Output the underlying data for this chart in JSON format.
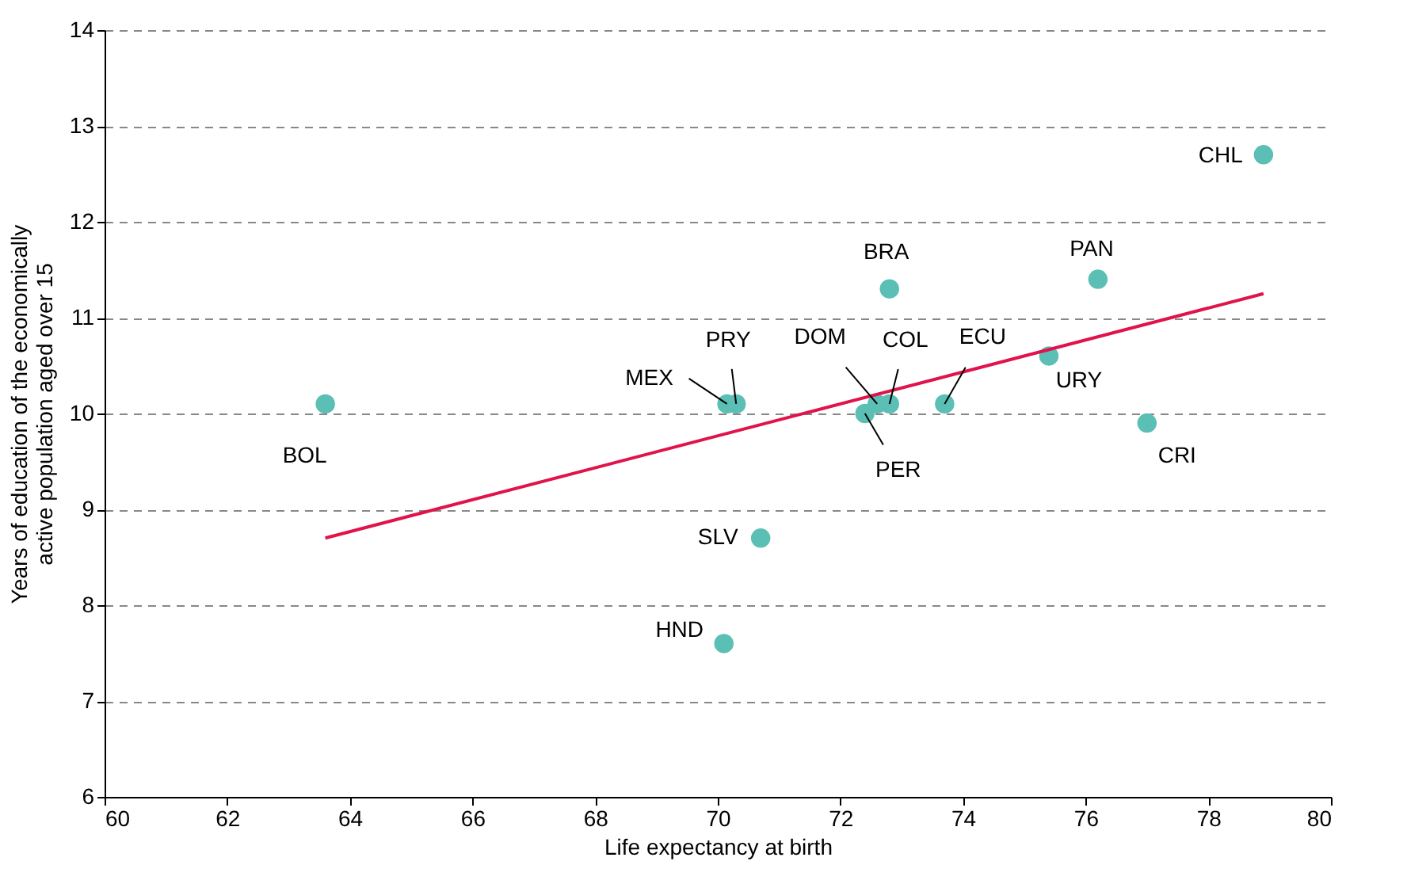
{
  "chart_data": {
    "type": "scatter",
    "xlabel": "Life expectancy at birth",
    "ylabel": "Years of education of the economically\nactive population aged over 15",
    "xlim": [
      60,
      80
    ],
    "xticks": [
      60,
      62,
      64,
      66,
      68,
      70,
      72,
      74,
      76,
      78,
      80
    ],
    "ylim": [
      6,
      14
    ],
    "yticks": [
      6,
      7,
      8,
      9,
      10,
      11,
      12,
      13,
      14
    ],
    "grid": "y",
    "series": [
      {
        "color": "#5bbfb5",
        "marker": "circle",
        "x": [
          63.6,
          70.15,
          70.3,
          72.6,
          72.8,
          72.4,
          72.8,
          73.7,
          75.4,
          77.0,
          76.2,
          78.9,
          70.7,
          70.1
        ],
        "values": [
          10.1,
          10.1,
          10.1,
          10.1,
          10.1,
          10.0,
          11.3,
          10.1,
          10.6,
          9.9,
          11.4,
          12.7,
          8.7,
          7.6
        ]
      },
      {
        "type": "line",
        "color": "#e0134a",
        "line_style": "solid",
        "marker": "none",
        "x": [
          63.6,
          78.9
        ],
        "values": [
          8.7,
          11.25
        ]
      }
    ],
    "annotations": [
      {
        "text": "BOL",
        "x": 63.6,
        "y": 10.1
      },
      {
        "text": "MEX",
        "x": 70.15,
        "y": 10.1
      },
      {
        "text": "PRY",
        "x": 70.3,
        "y": 10.1
      },
      {
        "text": "DOM",
        "x": 72.6,
        "y": 10.1
      },
      {
        "text": "COL",
        "x": 72.8,
        "y": 10.1
      },
      {
        "text": "PER",
        "x": 72.4,
        "y": 10.0
      },
      {
        "text": "BRA",
        "x": 72.8,
        "y": 11.3
      },
      {
        "text": "ECU",
        "x": 73.7,
        "y": 10.1
      },
      {
        "text": "URY",
        "x": 75.4,
        "y": 10.6
      },
      {
        "text": "CRI",
        "x": 77.0,
        "y": 9.9
      },
      {
        "text": "PAN",
        "x": 76.2,
        "y": 11.4
      },
      {
        "text": "CHL",
        "x": 78.9,
        "y": 12.7
      },
      {
        "text": "SLV",
        "x": 70.7,
        "y": 8.7
      },
      {
        "text": "HND",
        "x": 70.1,
        "y": 7.6
      }
    ]
  }
}
